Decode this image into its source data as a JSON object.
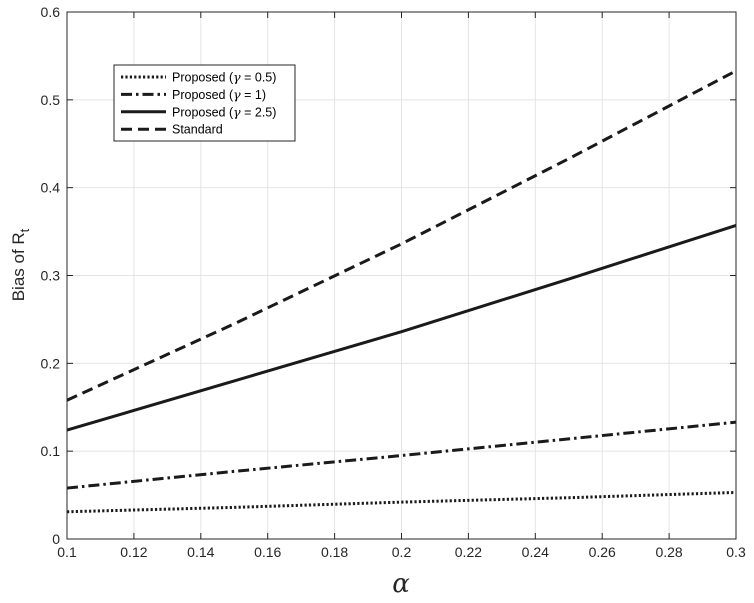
{
  "chart_data": {
    "type": "line",
    "xlabel": "α",
    "ylabel": "Bias of R",
    "ylabel_sub": "t",
    "xlim": [
      0.1,
      0.3
    ],
    "ylim": [
      0,
      0.6
    ],
    "xticks": [
      0.1,
      0.12,
      0.14,
      0.16,
      0.18,
      0.2,
      0.22,
      0.24,
      0.26,
      0.28,
      0.3
    ],
    "xtick_labels": [
      "0.1",
      "0.12",
      "0.14",
      "0.16",
      "0.18",
      "0.2",
      "0.22",
      "0.24",
      "0.26",
      "0.28",
      "0.3"
    ],
    "yticks": [
      0,
      0.1,
      0.2,
      0.3,
      0.4,
      0.5,
      0.6
    ],
    "ytick_labels": [
      "0",
      "0.1",
      "0.2",
      "0.3",
      "0.4",
      "0.5",
      "0.6"
    ],
    "grid": true,
    "legend_position": "top-left",
    "series": [
      {
        "name": "Proposed (γ = 0.5)",
        "legend_prefix": "Proposed (",
        "legend_greek": "γ",
        "legend_suffix": " = 0.5)",
        "style": "dotted",
        "color": "#1a1a1a",
        "x": [
          0.1,
          0.15,
          0.2,
          0.25,
          0.3
        ],
        "y": [
          0.031,
          0.036,
          0.042,
          0.047,
          0.053
        ]
      },
      {
        "name": "Proposed (γ = 1)",
        "legend_prefix": "Proposed (",
        "legend_greek": "γ",
        "legend_suffix": " = 1)",
        "style": "dashdot",
        "color": "#1a1a1a",
        "x": [
          0.1,
          0.15,
          0.2,
          0.25,
          0.3
        ],
        "y": [
          0.058,
          0.077,
          0.095,
          0.114,
          0.133
        ]
      },
      {
        "name": "Proposed (γ = 2.5)",
        "legend_prefix": "Proposed (",
        "legend_greek": "γ",
        "legend_suffix": " = 2.5)",
        "style": "solid",
        "color": "#1a1a1a",
        "x": [
          0.1,
          0.15,
          0.2,
          0.25,
          0.3
        ],
        "y": [
          0.124,
          0.18,
          0.236,
          0.296,
          0.357
        ]
      },
      {
        "name": "Standard",
        "legend_prefix": "Standard",
        "legend_greek": "",
        "legend_suffix": "",
        "style": "dashed",
        "color": "#1a1a1a",
        "x": [
          0.1,
          0.15,
          0.2,
          0.25,
          0.3
        ],
        "y": [
          0.158,
          0.245,
          0.336,
          0.433,
          0.533
        ]
      }
    ]
  }
}
